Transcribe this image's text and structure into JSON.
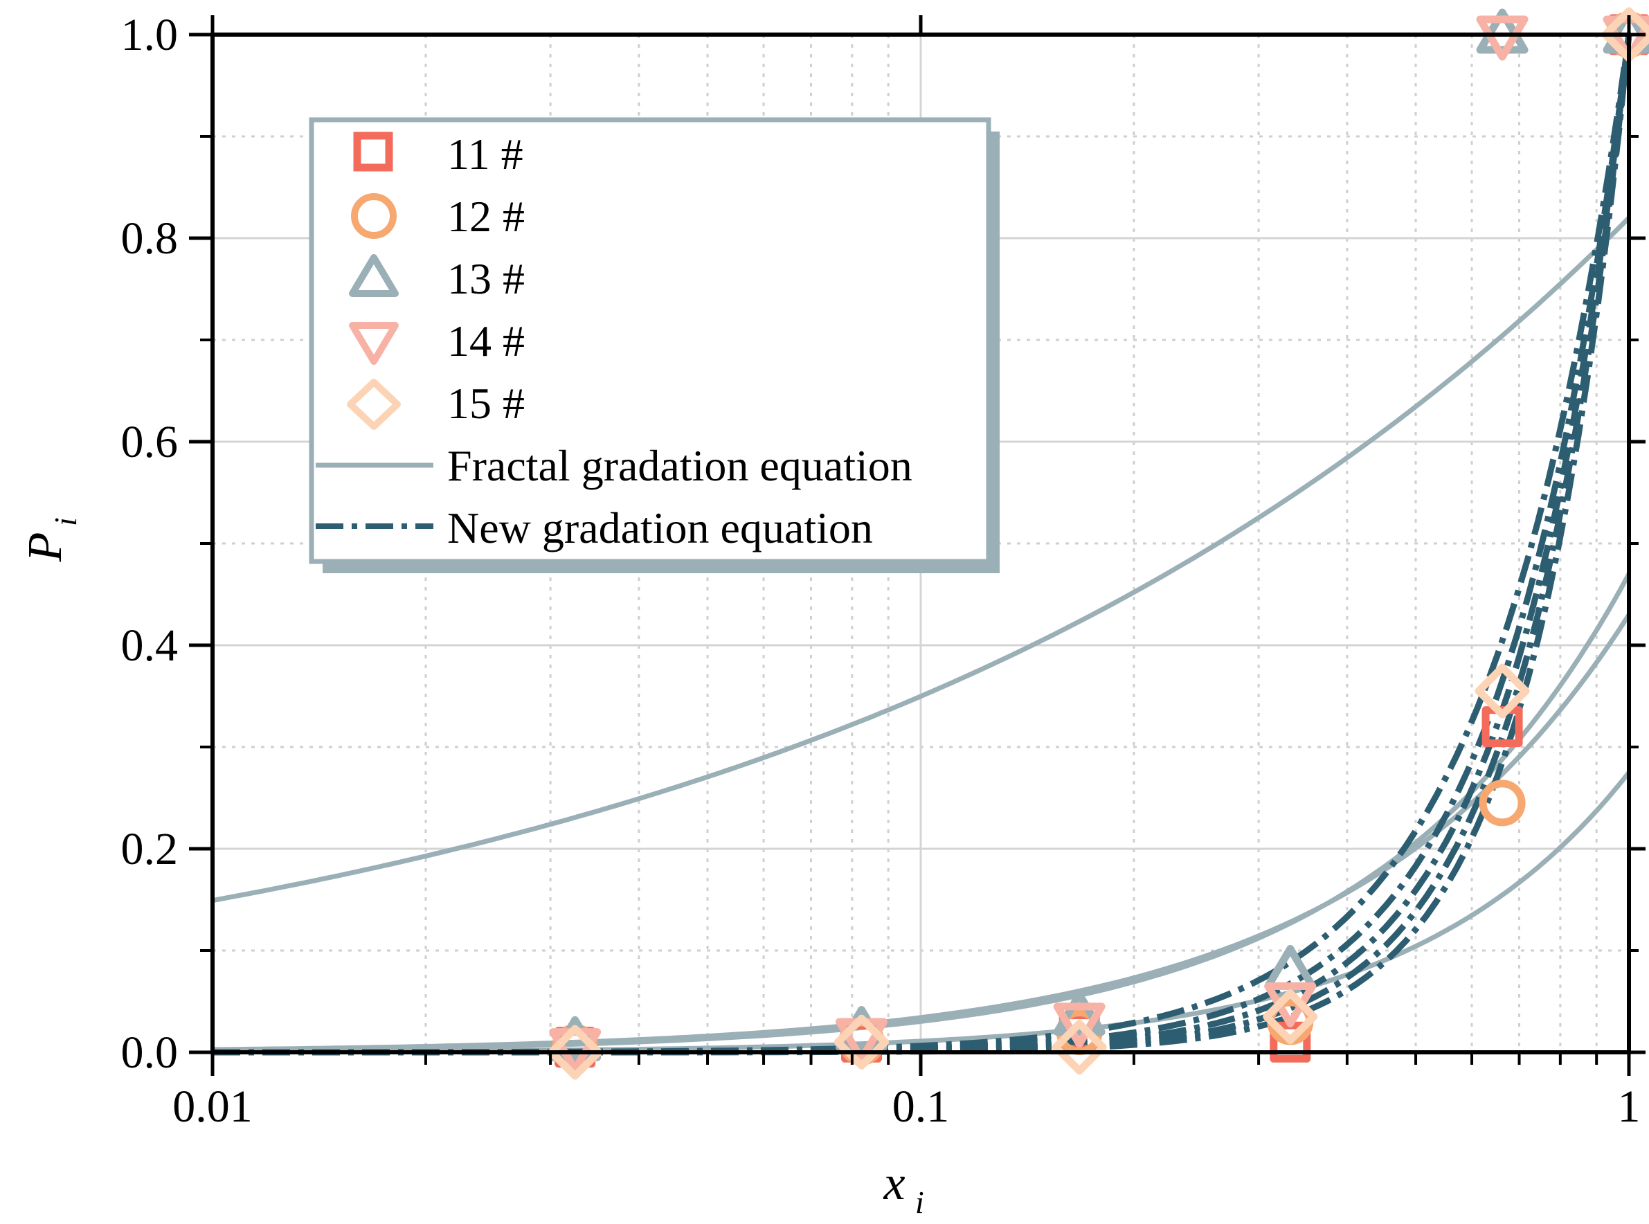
{
  "chart_data": {
    "type": "scatter",
    "x_scale": "log",
    "xlim": [
      0.01,
      1
    ],
    "ylim": [
      0.0,
      1.0
    ],
    "x_ticks": [
      0.01,
      0.1,
      1
    ],
    "x_tick_labels": [
      "0.01",
      "0.1",
      "1"
    ],
    "y_ticks": [
      0.0,
      0.2,
      0.4,
      0.6,
      0.8,
      1.0
    ],
    "y_tick_labels": [
      "0.0",
      "0.2",
      "0.4",
      "0.6",
      "0.8",
      "1.0"
    ],
    "xlabel": {
      "main": "x",
      "sub": "i"
    },
    "ylabel": {
      "main": "P",
      "sub": "i"
    },
    "grid": true,
    "legend_position": "upper-left",
    "x_points": [
      0.0325,
      0.0825,
      0.1675,
      0.3325,
      0.6625,
      1.0
    ],
    "series": [
      {
        "name": "11 #",
        "marker": "square",
        "color": "#f26b5b",
        "values": [
          0.005,
          0.01,
          0.02,
          0.01,
          0.32,
          1.0
        ]
      },
      {
        "name": "12 #",
        "marker": "circle",
        "color": "#f6a870",
        "values": [
          0.005,
          0.01,
          0.02,
          0.03,
          0.245,
          1.0
        ]
      },
      {
        "name": "13 #",
        "marker": "triangle-up",
        "color": "#9aafb6",
        "values": [
          0.01,
          0.02,
          0.035,
          0.08,
          1.0,
          1.0
        ]
      },
      {
        "name": "14 #",
        "marker": "triangle-down",
        "color": "#f7b2a5",
        "values": [
          0.005,
          0.015,
          0.03,
          0.05,
          1.0,
          1.0
        ]
      },
      {
        "name": "15 #",
        "marker": "diamond",
        "color": "#fcd4b5",
        "values": [
          0.0,
          0.01,
          0.005,
          0.035,
          0.355,
          1.0
        ]
      }
    ],
    "fits": [
      {
        "name": "Fractal gradation equation",
        "style": "solid",
        "color": "#9aafb6",
        "curves": [
          {
            "D": 2.63,
            "a": 0.82
          },
          {
            "D": 1.81,
            "a": 0.47
          },
          {
            "D": 1.9,
            "a": 0.43
          },
          {
            "D": 1.6,
            "a": 0.275
          }
        ]
      },
      {
        "name": "New gradation equation",
        "style": "dash-dot",
        "color": "#2c5d70",
        "curves": [
          {
            "n": 2.2
          },
          {
            "n": 2.45
          },
          {
            "n": 2.65
          },
          {
            "n": 2.85
          },
          {
            "n": 3.05
          }
        ]
      }
    ]
  },
  "legend": {
    "items": [
      {
        "label": "11 #"
      },
      {
        "label": "12 #"
      },
      {
        "label": "13 #"
      },
      {
        "label": "14 #"
      },
      {
        "label": "15 #"
      },
      {
        "label": "Fractal gradation equation"
      },
      {
        "label": "New gradation equation"
      }
    ]
  }
}
